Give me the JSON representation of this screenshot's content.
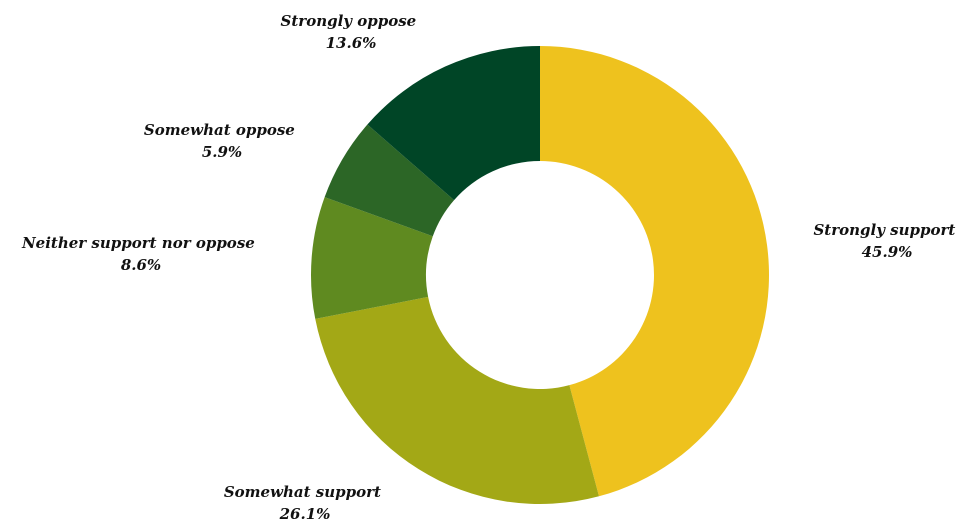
{
  "chart_data": {
    "type": "pie",
    "variant": "donut",
    "title": "",
    "categories": [
      "Strongly support",
      "Somewhat support",
      "Neither support nor oppose",
      "Somewhat oppose",
      "Strongly oppose"
    ],
    "values": [
      45.9,
      26.1,
      8.6,
      5.9,
      13.6
    ],
    "value_labels": [
      "45.9%",
      "26.1%",
      "8.6%",
      "5.9%",
      "13.6%"
    ],
    "colors": [
      "#eec21e",
      "#a3a816",
      "#5f8a20",
      "#2c6626",
      "#004526"
    ],
    "legend": "none"
  }
}
